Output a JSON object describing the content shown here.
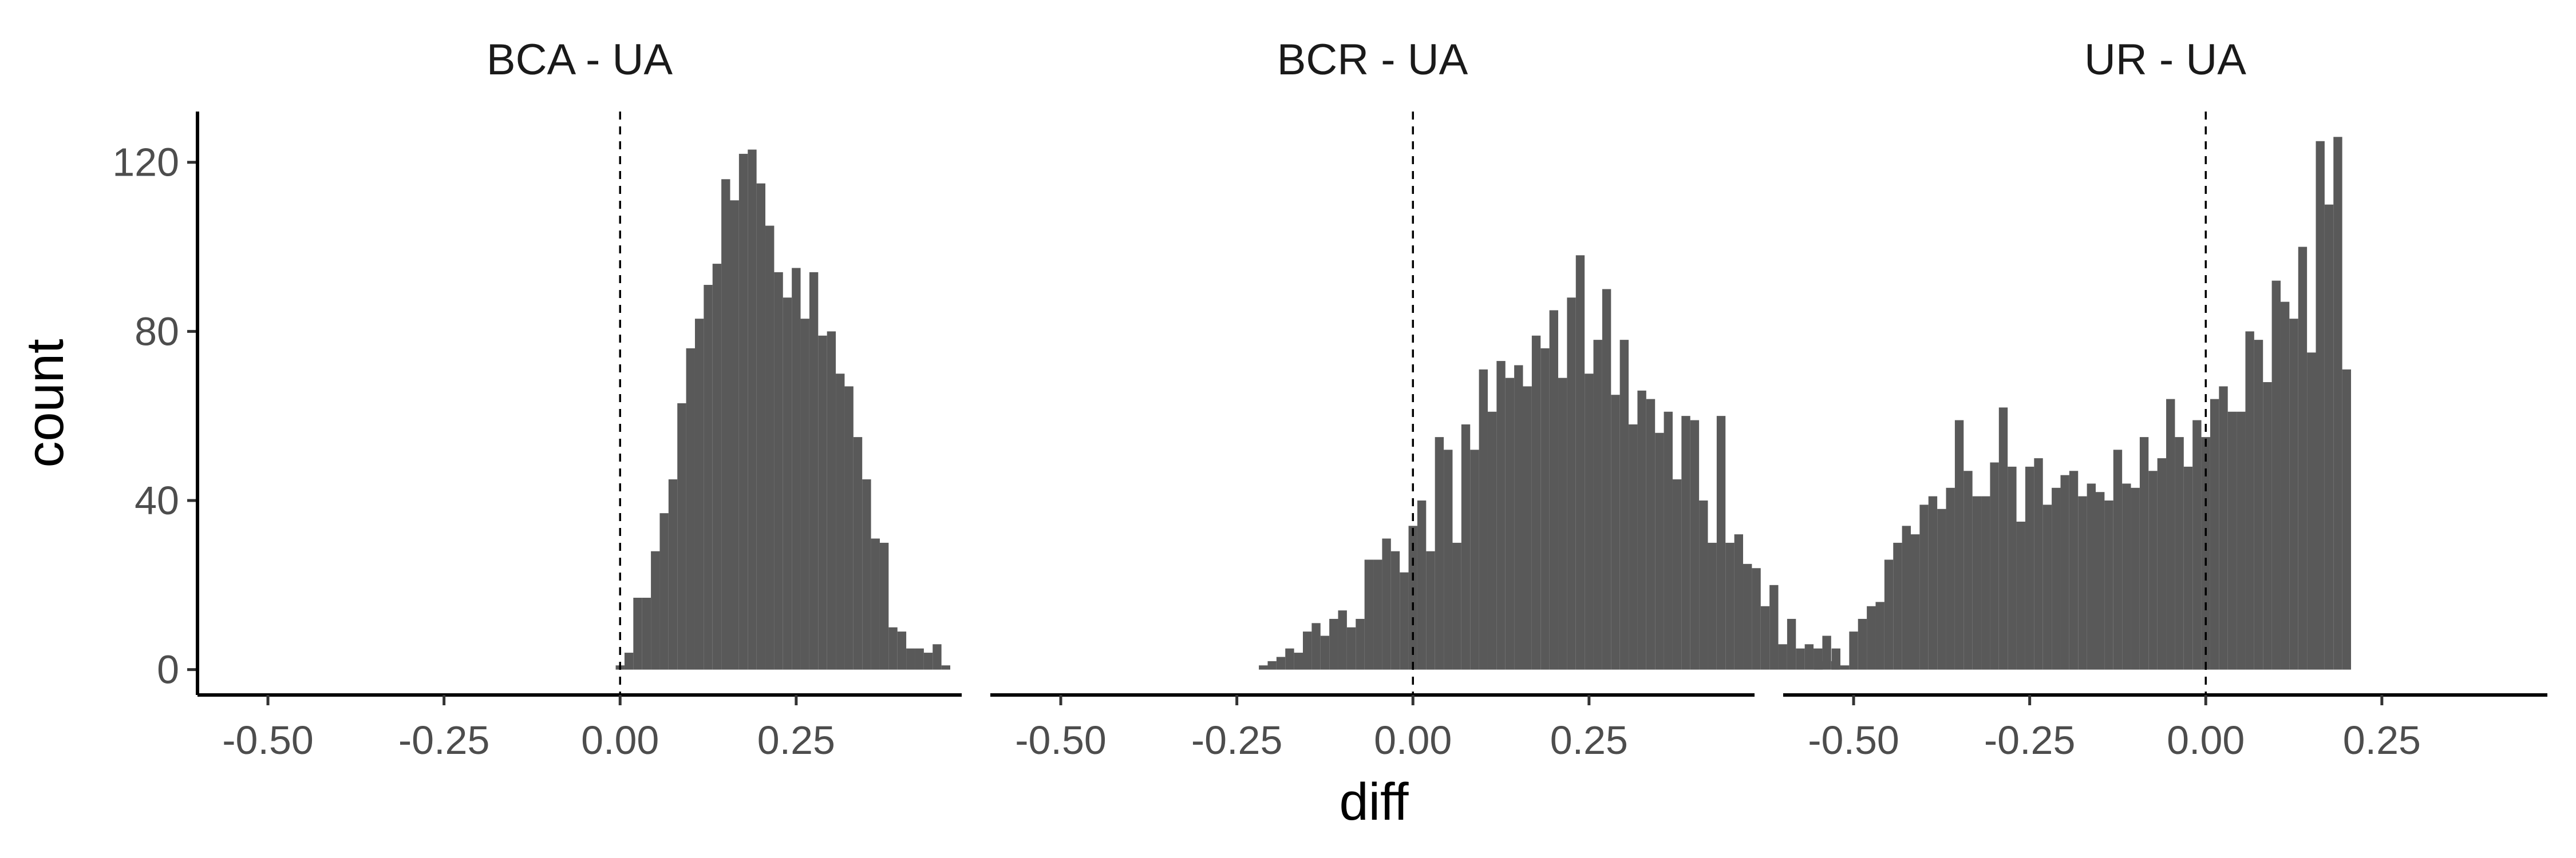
{
  "chart_data": {
    "type": "bar",
    "xlabel": "diff",
    "ylabel": "count",
    "ylim": [
      -6,
      132
    ],
    "xlim": [
      -0.6,
      0.485
    ],
    "yticks": [
      0,
      40,
      80,
      120
    ],
    "ytick_labels": [
      "0",
      "40",
      "80",
      "120"
    ],
    "xticks": [
      -0.5,
      -0.25,
      0,
      0.25
    ],
    "xtick_labels": [
      "-0.50",
      "-0.25",
      "0.00",
      "0.25"
    ],
    "reference_line_x": 0,
    "grid": false,
    "legend": "none",
    "bar_color": "#595959",
    "bin_width": 0.0125,
    "panels": [
      {
        "title": "BCA - UA",
        "bin_start": -0.00625,
        "counts": [
          1,
          4,
          17,
          17,
          28,
          37,
          45,
          63,
          76,
          83,
          91,
          96,
          116,
          111,
          122,
          123,
          115,
          105,
          94,
          88,
          95,
          83,
          94,
          79,
          80,
          70,
          67,
          55,
          45,
          31,
          30,
          10,
          9,
          5,
          5,
          4,
          6,
          1
        ]
      },
      {
        "title": "BCR - UA",
        "bin_start": -0.21875,
        "counts": [
          1,
          2,
          3,
          5,
          4,
          9,
          11,
          8,
          12,
          14,
          10,
          12,
          26,
          26,
          31,
          28,
          23,
          34,
          40,
          28,
          55,
          52,
          30,
          58,
          52,
          71,
          61,
          73,
          69,
          72,
          67,
          79,
          76,
          85,
          69,
          88,
          98,
          70,
          78,
          90,
          65,
          78,
          58,
          66,
          64,
          56,
          61,
          45,
          60,
          59,
          40,
          30,
          60,
          30,
          32,
          25,
          24,
          15,
          20,
          6,
          12,
          5,
          6,
          5,
          8,
          2
        ]
      },
      {
        "title": "UR - UA",
        "bin_start": -0.55625,
        "counts": [
          2,
          0,
          5,
          1,
          9,
          12,
          15,
          16,
          26,
          30,
          34,
          32,
          39,
          41,
          38,
          43,
          59,
          47,
          41,
          41,
          49,
          62,
          48,
          35,
          48,
          50,
          39,
          43,
          46,
          47,
          41,
          44,
          42,
          40,
          52,
          44,
          43,
          55,
          47,
          50,
          64,
          55,
          48,
          59,
          55,
          64,
          67,
          61,
          61,
          80,
          78,
          68,
          92,
          87,
          83,
          100,
          75,
          125,
          110,
          126,
          71
        ]
      }
    ]
  }
}
